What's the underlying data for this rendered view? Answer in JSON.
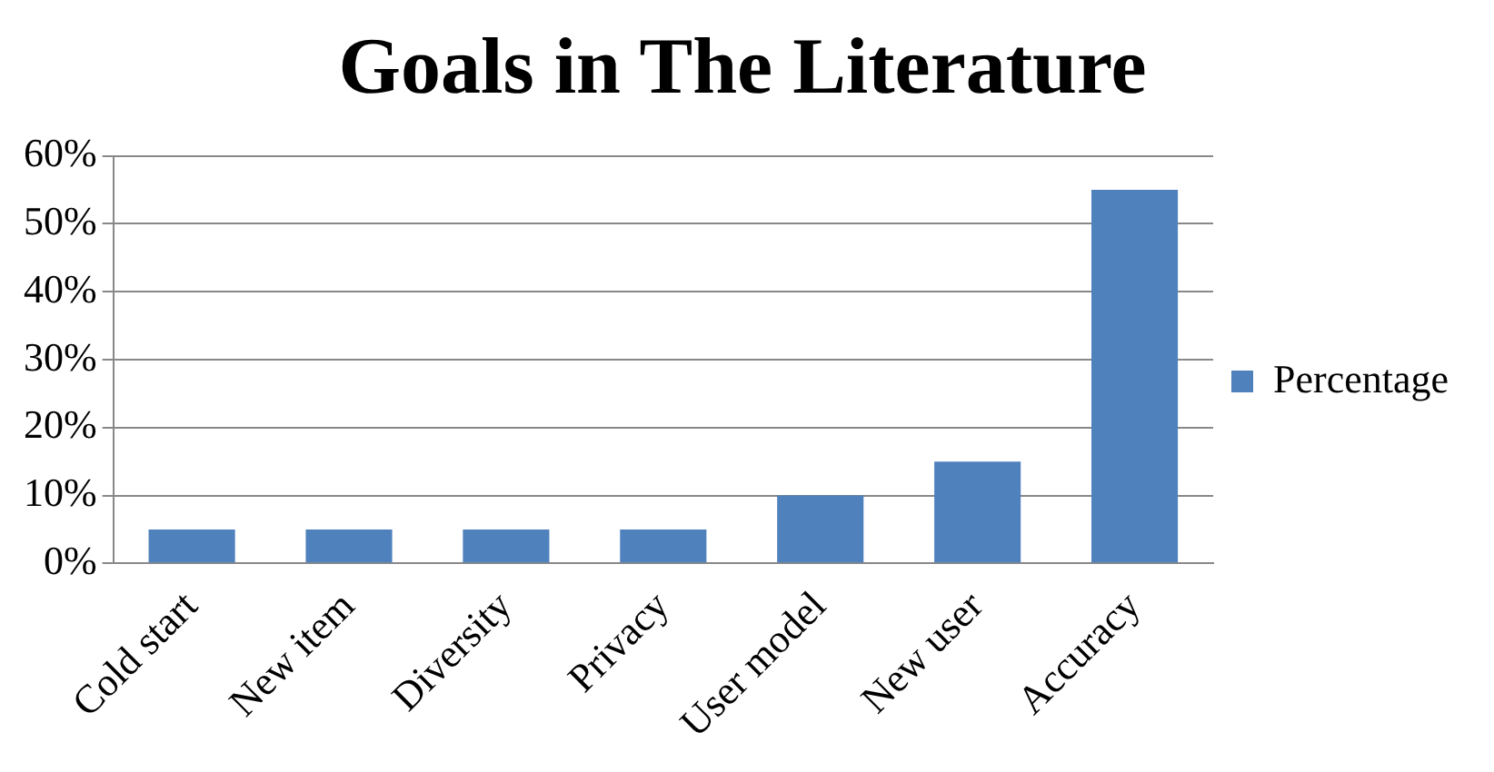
{
  "chart_data": {
    "type": "bar",
    "title": "Goals in The Literature",
    "categories": [
      "Cold start",
      "New item",
      "Diversity",
      "Privacy",
      "User model",
      "New user",
      "Accuracy"
    ],
    "series": [
      {
        "name": "Percentage",
        "color": "#4f81bd",
        "values": [
          5,
          5,
          5,
          5,
          10,
          15,
          55
        ]
      }
    ],
    "ylim": [
      0,
      60
    ],
    "yticks": [
      {
        "value": 0,
        "label": "0%"
      },
      {
        "value": 10,
        "label": "10%"
      },
      {
        "value": 20,
        "label": "20%"
      },
      {
        "value": 30,
        "label": "30%"
      },
      {
        "value": 40,
        "label": "40%"
      },
      {
        "value": 50,
        "label": "50%"
      },
      {
        "value": 60,
        "label": "60%"
      }
    ],
    "grid": "y",
    "legend": "right"
  }
}
